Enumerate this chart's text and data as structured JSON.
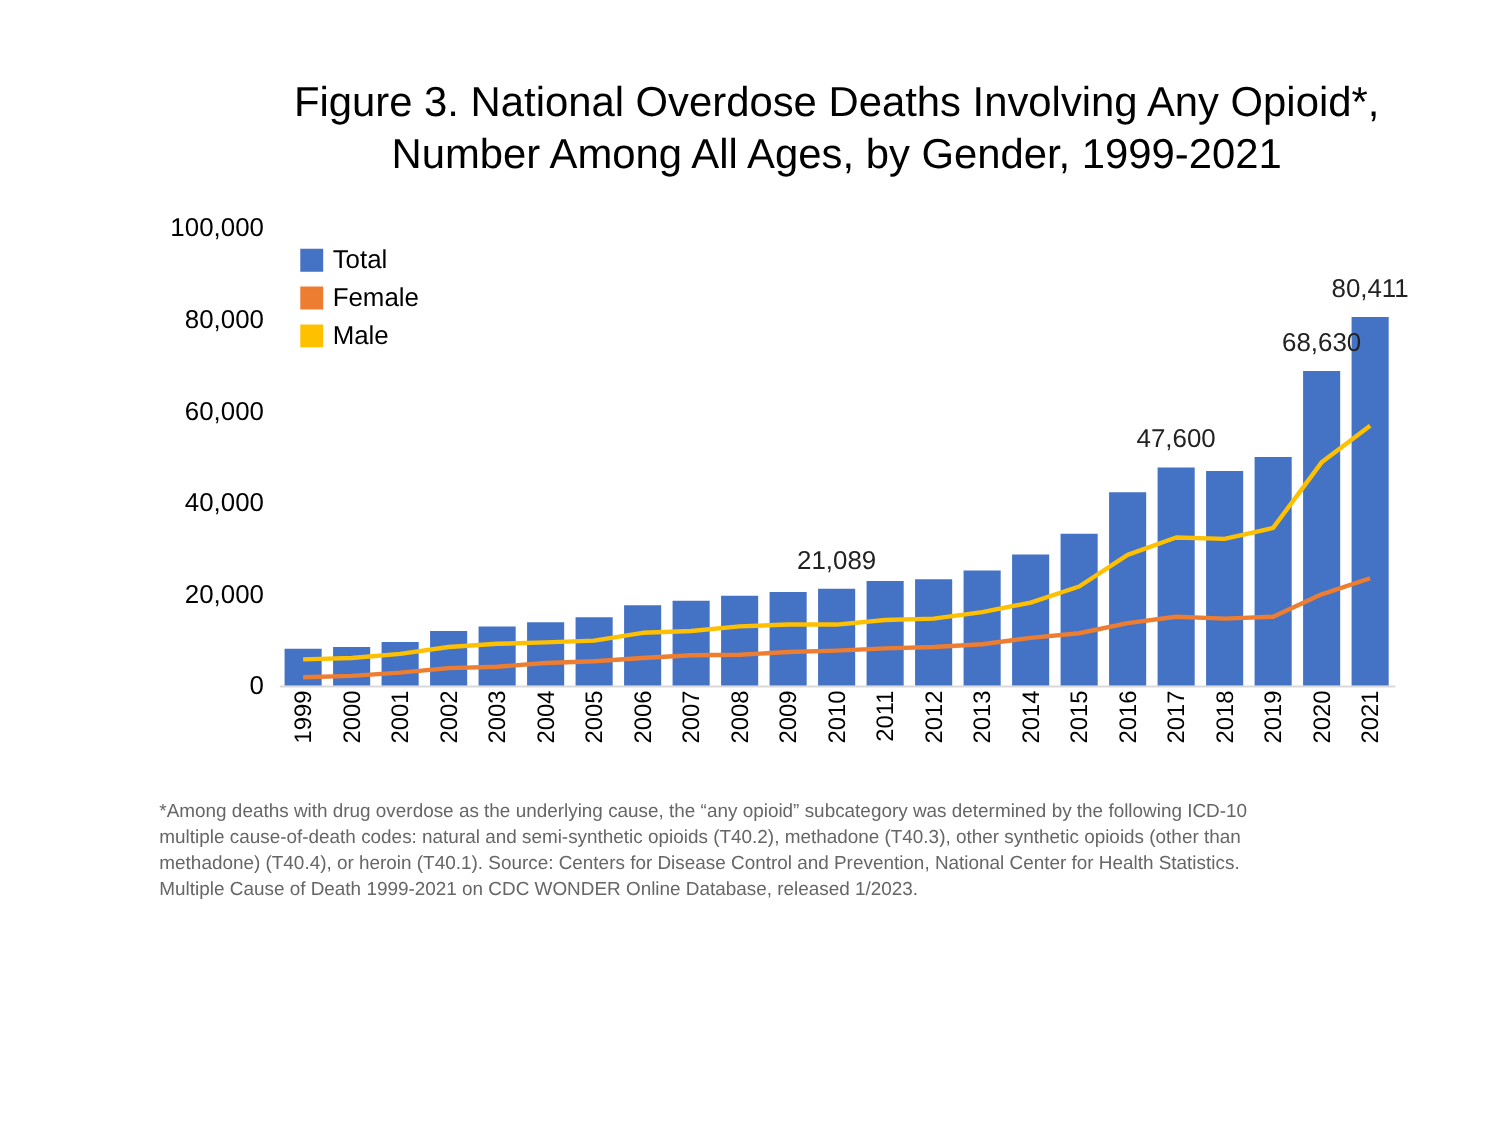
{
  "chart_data": {
    "type": "bar",
    "title": "Figure 3. National Overdose Deaths Involving Any Opioid*,\nNumber Among All Ages, by Gender, 1999-2021",
    "categories": [
      "1999",
      "2000",
      "2001",
      "2002",
      "2003",
      "2004",
      "2005",
      "2006",
      "2007",
      "2008",
      "2009",
      "2010",
      "2011",
      "2012",
      "2013",
      "2014",
      "2015",
      "2016",
      "2017",
      "2018",
      "2019",
      "2020",
      "2021"
    ],
    "series": [
      {
        "name": "Total",
        "color": "#4472c4",
        "values": [
          8000,
          8400,
          9500,
          11900,
          12900,
          13800,
          14900,
          17500,
          18500,
          19600,
          20400,
          21089,
          22800,
          23200,
          25100,
          28600,
          33100,
          42200,
          47600,
          46800,
          49900,
          68630,
          80411
        ],
        "value_labels": [
          null,
          null,
          null,
          null,
          null,
          null,
          null,
          null,
          null,
          null,
          null,
          "21,089",
          null,
          null,
          null,
          null,
          null,
          null,
          "47,600",
          null,
          null,
          "68,630",
          "80,411"
        ]
      },
      {
        "name": "Female",
        "type": "line",
        "color": "#ed7d31",
        "values": [
          1800,
          2100,
          2800,
          3800,
          4100,
          4900,
          5300,
          6000,
          6600,
          6700,
          7300,
          7600,
          8100,
          8400,
          9000,
          10400,
          11400,
          13600,
          15000,
          14600,
          15000,
          19900,
          23400
        ]
      },
      {
        "name": "Male",
        "type": "line",
        "color": "#ffc000",
        "values": [
          5700,
          6000,
          6900,
          8400,
          9100,
          9400,
          9800,
          11500,
          11900,
          12900,
          13300,
          13300,
          14300,
          14600,
          16000,
          18100,
          21600,
          28500,
          32300,
          32000,
          34400,
          48700,
          56700
        ]
      }
    ],
    "ylim": [
      0,
      100000
    ],
    "yticks": [
      0,
      {
        "value": 20000,
        "label": "20,000"
      },
      {
        "value": 40000,
        "label": "40,000"
      },
      {
        "value": 60000,
        "label": "60,000"
      },
      {
        "value": 80000,
        "label": "80,000"
      },
      {
        "value": 100000,
        "label": "100,000"
      }
    ],
    "grid": false,
    "legend": "top left",
    "marker": "none",
    "line_style": "solid",
    "annotations": [
      "*Among deaths with drug overdose as the underlying cause, the “any opioid” subcategory was determined by the following ICD-10\nmultiple cause-of-death codes: natural and semi-synthetic opioids (T40.2), methadone (T40.3), other synthetic opioids (other than\nmethadone) (T40.4), or heroin (T40.1). Source: Centers for Disease Control and Prevention, National Center for Health Statistics.\nMultiple Cause of Death 1999-2021 on CDC WONDER Online Database, released 1/2023."
    ]
  }
}
